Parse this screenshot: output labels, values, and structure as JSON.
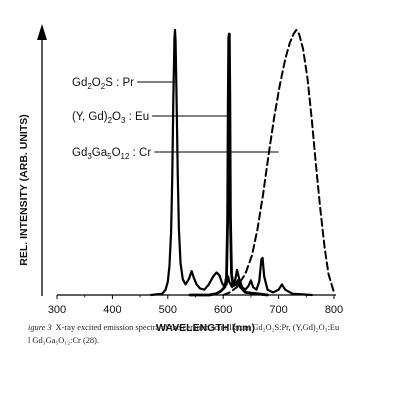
{
  "chart_data": {
    "type": "line",
    "xlabel": "WAVELENGTH (nm)",
    "ylabel": "REL. INTENSITY (ARB. UNITS)",
    "xlim": [
      300,
      800
    ],
    "ylim": [
      0,
      1
    ],
    "x_ticks": [
      300,
      400,
      500,
      600,
      700,
      800
    ],
    "grid": false,
    "legend": "inline labels with leader lines",
    "series": [
      {
        "name": "Gd2O2S : Pr",
        "style": "solid",
        "points": [
          [
            470,
            0.0
          ],
          [
            490,
            0.005
          ],
          [
            496,
            0.02
          ],
          [
            500,
            0.05
          ],
          [
            503,
            0.11
          ],
          [
            506,
            0.24
          ],
          [
            508,
            0.44
          ],
          [
            510,
            0.74
          ],
          [
            512,
            0.97
          ],
          [
            513,
            1.0
          ],
          [
            514,
            0.96
          ],
          [
            516,
            0.72
          ],
          [
            518,
            0.45
          ],
          [
            520,
            0.25
          ],
          [
            523,
            0.12
          ],
          [
            527,
            0.06
          ],
          [
            532,
            0.04
          ],
          [
            538,
            0.06
          ],
          [
            543,
            0.09
          ],
          [
            547,
            0.065
          ],
          [
            552,
            0.04
          ],
          [
            558,
            0.025
          ],
          [
            566,
            0.02
          ],
          [
            574,
            0.04
          ],
          [
            582,
            0.07
          ],
          [
            588,
            0.085
          ],
          [
            593,
            0.075
          ],
          [
            598,
            0.045
          ],
          [
            602,
            0.03
          ],
          [
            606,
            0.04
          ],
          [
            609,
            0.07
          ],
          [
            611,
            0.05
          ],
          [
            616,
            0.03
          ],
          [
            621,
            0.05
          ],
          [
            625,
            0.095
          ],
          [
            629,
            0.06
          ],
          [
            634,
            0.03
          ],
          [
            640,
            0.02
          ],
          [
            646,
            0.035
          ],
          [
            650,
            0.055
          ],
          [
            654,
            0.03
          ],
          [
            660,
            0.02
          ],
          [
            665,
            0.05
          ],
          [
            669,
            0.135
          ],
          [
            671,
            0.14
          ],
          [
            674,
            0.07
          ],
          [
            680,
            0.02
          ],
          [
            690,
            0.01
          ],
          [
            700,
            0.02
          ],
          [
            706,
            0.04
          ],
          [
            712,
            0.02
          ],
          [
            725,
            0.005
          ],
          [
            760,
            0.0
          ]
        ]
      },
      {
        "name": "(Y, Gd)2O3 : Eu",
        "style": "bold",
        "points": [
          [
            540,
            0.0
          ],
          [
            575,
            0.0
          ],
          [
            588,
            0.005
          ],
          [
            596,
            0.015
          ],
          [
            603,
            0.03
          ],
          [
            606,
            0.07
          ],
          [
            608,
            0.28
          ],
          [
            609,
            0.7
          ],
          [
            610,
            0.97
          ],
          [
            611,
            0.985
          ],
          [
            612,
            0.74
          ],
          [
            613,
            0.3
          ],
          [
            615,
            0.08
          ],
          [
            618,
            0.035
          ],
          [
            623,
            0.04
          ],
          [
            627,
            0.055
          ],
          [
            631,
            0.03
          ],
          [
            640,
            0.01
          ],
          [
            660,
            0.005
          ],
          [
            680,
            0.0
          ]
        ]
      },
      {
        "name": "Gd3Ga5O12 : Cr",
        "style": "dashed",
        "points": [
          [
            600,
            0.0
          ],
          [
            612,
            0.01
          ],
          [
            625,
            0.03
          ],
          [
            640,
            0.08
          ],
          [
            652,
            0.15
          ],
          [
            662,
            0.25
          ],
          [
            672,
            0.38
          ],
          [
            682,
            0.53
          ],
          [
            692,
            0.67
          ],
          [
            702,
            0.79
          ],
          [
            712,
            0.89
          ],
          [
            720,
            0.95
          ],
          [
            727,
            0.985
          ],
          [
            732,
            1.0
          ],
          [
            737,
            0.985
          ],
          [
            744,
            0.93
          ],
          [
            752,
            0.82
          ],
          [
            760,
            0.66
          ],
          [
            767,
            0.5
          ],
          [
            775,
            0.33
          ],
          [
            783,
            0.18
          ],
          [
            790,
            0.08
          ],
          [
            797,
            0.03
          ],
          [
            800,
            0.01
          ]
        ]
      }
    ],
    "annotations": [
      {
        "series": 0,
        "at_x": 513,
        "at_y": 0.79
      },
      {
        "series": 1,
        "at_x": 610,
        "at_y": 0.68
      },
      {
        "series": 2,
        "at_x": 700,
        "at_y": 0.51
      }
    ]
  },
  "labels": [
    {
      "parts": [
        [
          "Gd",
          ""
        ],
        [
          "2",
          "sub"
        ],
        [
          "O",
          ""
        ],
        [
          "2",
          "sub"
        ],
        [
          "S : Pr",
          ""
        ]
      ]
    },
    {
      "parts": [
        [
          "(Y, Gd)",
          ""
        ],
        [
          "2",
          "sub"
        ],
        [
          "O",
          ""
        ],
        [
          "3",
          "sub"
        ],
        [
          " : Eu",
          ""
        ]
      ]
    },
    {
      "parts": [
        [
          "Gd",
          ""
        ],
        [
          "3",
          "sub"
        ],
        [
          "Ga",
          ""
        ],
        [
          "5",
          "sub"
        ],
        [
          "O",
          ""
        ],
        [
          "12",
          "sub"
        ],
        [
          " : Cr",
          ""
        ]
      ]
    }
  ],
  "caption": {
    "label": "igure 3",
    "line1": "X-ray excited emission spectra of the ceramic scintillators Gd₂O₂S:Pr, (Y,Gd)₂O₃:Eu",
    "line2": "l Gd₃Ga₅O₁₂:Cr (28)."
  }
}
